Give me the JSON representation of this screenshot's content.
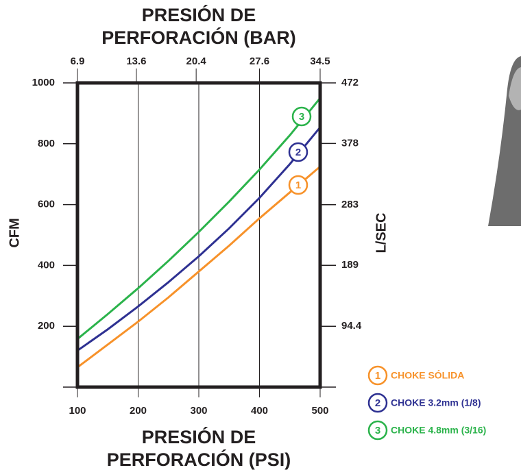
{
  "chart_data": {
    "type": "line",
    "x_label": [
      "PRESIÓN DE",
      "PERFORACIÓN (PSI)"
    ],
    "x2_label": [
      "PRESIÓN DE",
      "PERFORACIÓN (BAR)"
    ],
    "y_label": "CFM",
    "y2_label": "L/SEC",
    "x": [
      100,
      150,
      200,
      250,
      300,
      350,
      400,
      450,
      500
    ],
    "xlim": [
      100,
      500
    ],
    "xticks": [
      100,
      200,
      300,
      400,
      500
    ],
    "x2lim": [
      6.9,
      34.5
    ],
    "x2ticks": [
      6.9,
      13.6,
      20.4,
      27.6,
      34.5
    ],
    "ylim": [
      0,
      1000
    ],
    "yticks": [
      200,
      400,
      600,
      800,
      1000
    ],
    "y2lim": [
      0,
      472
    ],
    "y2ticks": [
      94.4,
      189,
      283,
      378,
      472
    ],
    "grid": "x",
    "series": [
      {
        "name": "CHOKE SÓLIDA",
        "marker_label": "1",
        "color": "#f7922a",
        "values": [
          65,
          140,
          215,
          295,
          380,
          465,
          555,
          640,
          725
        ]
      },
      {
        "name": "CHOKE 3.2mm (1/8)",
        "marker_label": "2",
        "color": "#2e3192",
        "values": [
          120,
          190,
          265,
          345,
          430,
          522,
          622,
          733,
          854
        ]
      },
      {
        "name": "CHOKE 4.8mm (3/16)",
        "marker_label": "3",
        "color": "#2bb34b",
        "values": [
          158,
          240,
          325,
          415,
          510,
          610,
          715,
          828,
          950
        ]
      }
    ]
  }
}
